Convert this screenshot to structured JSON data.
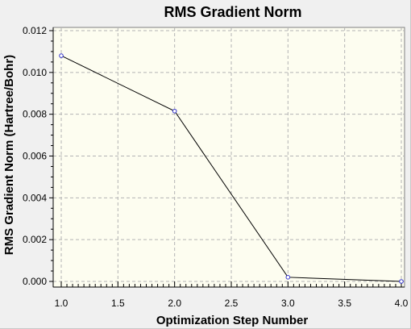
{
  "chart_data": {
    "type": "line",
    "title": "RMS Gradient Norm",
    "xlabel": "Optimization Step Number",
    "ylabel": "RMS Gradient Norm (Hartree/Bohr)",
    "xlim": [
      1.0,
      4.0
    ],
    "ylim": [
      0.0,
      0.012
    ],
    "x_ticks": [
      "1.0",
      "1.5",
      "2.0",
      "2.5",
      "3.0",
      "3.5",
      "4.0"
    ],
    "y_ticks": [
      "0.000",
      "0.002",
      "0.004",
      "0.006",
      "0.008",
      "0.010",
      "0.012"
    ],
    "grid": true,
    "series": [
      {
        "x": [
          1,
          2,
          3,
          4
        ],
        "y": [
          0.0108,
          0.00815,
          0.0002,
          0.0
        ]
      }
    ],
    "colors": {
      "plot_background": "#fdfdf0",
      "grid": "#b4b4b4",
      "line": "#000000",
      "marker": "#3333cc",
      "window_background": "#f0f0f0"
    }
  }
}
